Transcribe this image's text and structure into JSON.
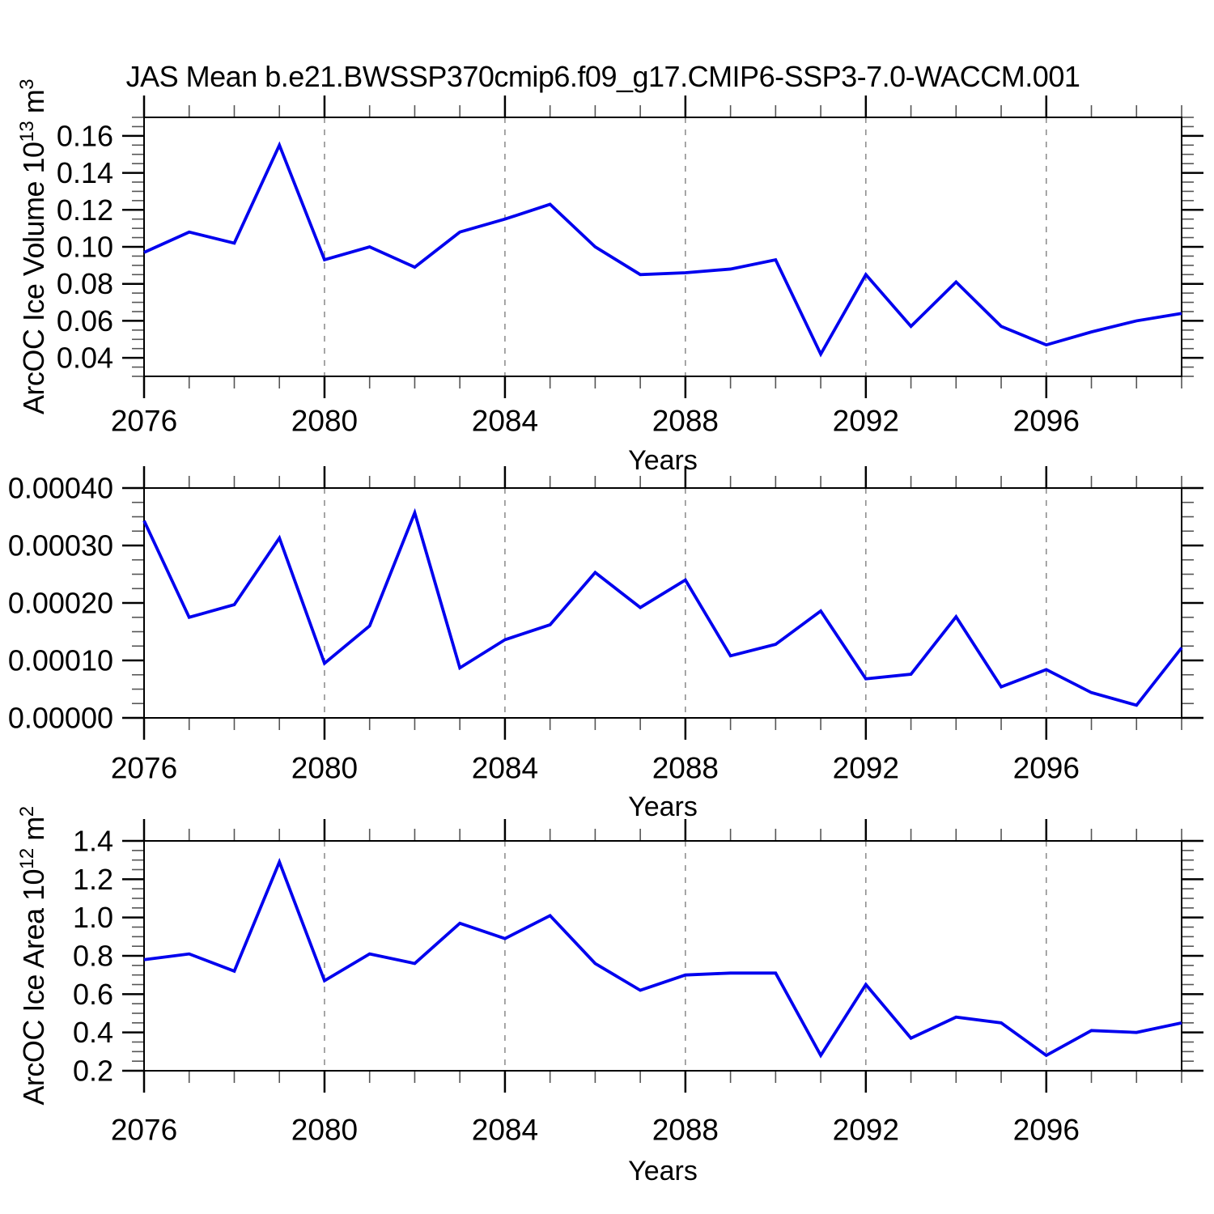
{
  "title": "JAS Mean b.e21.BWSSP370cmip6.f09_g17.CMIP6-SSP3-7.0-WACCM.001",
  "line_color": "#0000ee",
  "gridline_color": "#808080",
  "x_axis": {
    "label": "Years",
    "min": 2076,
    "max": 2099,
    "major_ticks": [
      2076,
      2080,
      2084,
      2088,
      2092,
      2096
    ],
    "tick_labels": [
      "2076",
      "2080",
      "2084",
      "2088",
      "2092",
      "2096"
    ],
    "minor_step": 1,
    "gridline_years": [
      2080,
      2084,
      2088,
      2092,
      2096
    ]
  },
  "chart_data": [
    {
      "id": "ice-volume",
      "type": "line",
      "ylabel_text": "ArcOC Ice Volume 10^13 m^3",
      "ylabel_parts": [
        {
          "t": "ArcOC Ice Volume 10"
        },
        {
          "t": "13",
          "sup": true
        },
        {
          "t": " m"
        },
        {
          "t": "3",
          "sup": true
        }
      ],
      "ylim": [
        0.03,
        0.17
      ],
      "yticks": [
        0.04,
        0.06,
        0.08,
        0.1,
        0.12,
        0.14,
        0.16
      ],
      "ytick_labels": [
        "0.04",
        "0.06",
        "0.08",
        "0.10",
        "0.12",
        "0.14",
        "0.16"
      ],
      "y_minor_step": 0.005,
      "x": [
        2076,
        2077,
        2078,
        2079,
        2080,
        2081,
        2082,
        2083,
        2084,
        2085,
        2086,
        2087,
        2088,
        2089,
        2090,
        2091,
        2092,
        2093,
        2094,
        2095,
        2096,
        2097,
        2098,
        2099
      ],
      "values": [
        0.097,
        0.108,
        0.102,
        0.155,
        0.093,
        0.1,
        0.089,
        0.108,
        0.115,
        0.123,
        0.1,
        0.085,
        0.086,
        0.088,
        0.093,
        0.042,
        0.085,
        0.057,
        0.081,
        0.057,
        0.047,
        0.054,
        0.06,
        0.064
      ]
    },
    {
      "id": "ice-middle",
      "type": "line",
      "ylabel_text": "",
      "ylabel_parts": null,
      "ylim": [
        0.0,
        0.0004
      ],
      "yticks": [
        0.0,
        0.0001,
        0.0002,
        0.0003,
        0.0004
      ],
      "ytick_labels": [
        "0.00000",
        "0.00010",
        "0.00020",
        "0.00030",
        "0.00040"
      ],
      "y_minor_step": 2.5e-05,
      "x": [
        2076,
        2077,
        2078,
        2079,
        2080,
        2081,
        2082,
        2083,
        2084,
        2085,
        2086,
        2087,
        2088,
        2089,
        2090,
        2091,
        2092,
        2093,
        2094,
        2095,
        2096,
        2097,
        2098,
        2099
      ],
      "values": [
        0.000343,
        0.000175,
        0.000197,
        0.000313,
        9.5e-05,
        0.00016,
        0.000357,
        8.7e-05,
        0.000136,
        0.000162,
        0.000253,
        0.000192,
        0.00024,
        0.000108,
        0.000128,
        0.000186,
        6.8e-05,
        7.6e-05,
        0.000176,
        5.4e-05,
        8.4e-05,
        4.4e-05,
        2.2e-05,
        0.000122
      ]
    },
    {
      "id": "ice-area",
      "type": "line",
      "ylabel_text": "ArcOC Ice Area 10^12 m^2",
      "ylabel_parts": [
        {
          "t": "ArcOC Ice Area 10"
        },
        {
          "t": "12",
          "sup": true
        },
        {
          "t": " m"
        },
        {
          "t": "2",
          "sup": true
        }
      ],
      "ylim": [
        0.2,
        1.4
      ],
      "yticks": [
        0.2,
        0.4,
        0.6,
        0.8,
        1.0,
        1.2,
        1.4
      ],
      "ytick_labels": [
        "0.2",
        "0.4",
        "0.6",
        "0.8",
        "1.0",
        "1.2",
        "1.4"
      ],
      "y_minor_step": 0.05,
      "x": [
        2076,
        2077,
        2078,
        2079,
        2080,
        2081,
        2082,
        2083,
        2084,
        2085,
        2086,
        2087,
        2088,
        2089,
        2090,
        2091,
        2092,
        2093,
        2094,
        2095,
        2096,
        2097,
        2098,
        2099
      ],
      "values": [
        0.78,
        0.81,
        0.72,
        1.29,
        0.67,
        0.81,
        0.76,
        0.97,
        0.89,
        1.01,
        0.76,
        0.62,
        0.7,
        0.71,
        0.71,
        0.28,
        0.65,
        0.37,
        0.48,
        0.45,
        0.28,
        0.41,
        0.4,
        0.45
      ]
    }
  ]
}
